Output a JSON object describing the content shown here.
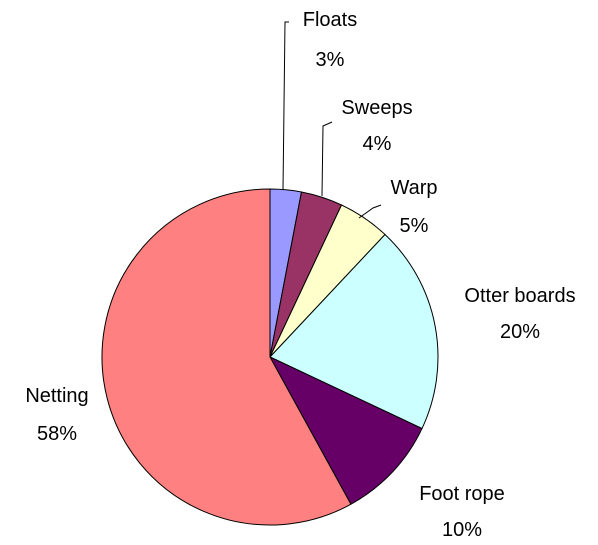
{
  "chart_data": {
    "type": "pie",
    "title": "",
    "start": "12 o'clock",
    "direction": "clockwise",
    "slices": [
      {
        "label": "Floats",
        "value": 3,
        "value_label": "3%",
        "color": "#9999ff"
      },
      {
        "label": "Sweeps",
        "value": 4,
        "value_label": "4%",
        "color": "#993366"
      },
      {
        "label": "Warp",
        "value": 5,
        "value_label": "5%",
        "color": "#ffffcc"
      },
      {
        "label": "Otter boards",
        "value": 20,
        "value_label": "20%",
        "color": "#ccffff"
      },
      {
        "label": "Foot rope",
        "value": 10,
        "value_label": "10%",
        "color": "#660066"
      },
      {
        "label": "Netting",
        "value": 58,
        "value_label": "58%",
        "color": "#ff8080"
      }
    ],
    "legend": "none",
    "grid": false
  }
}
